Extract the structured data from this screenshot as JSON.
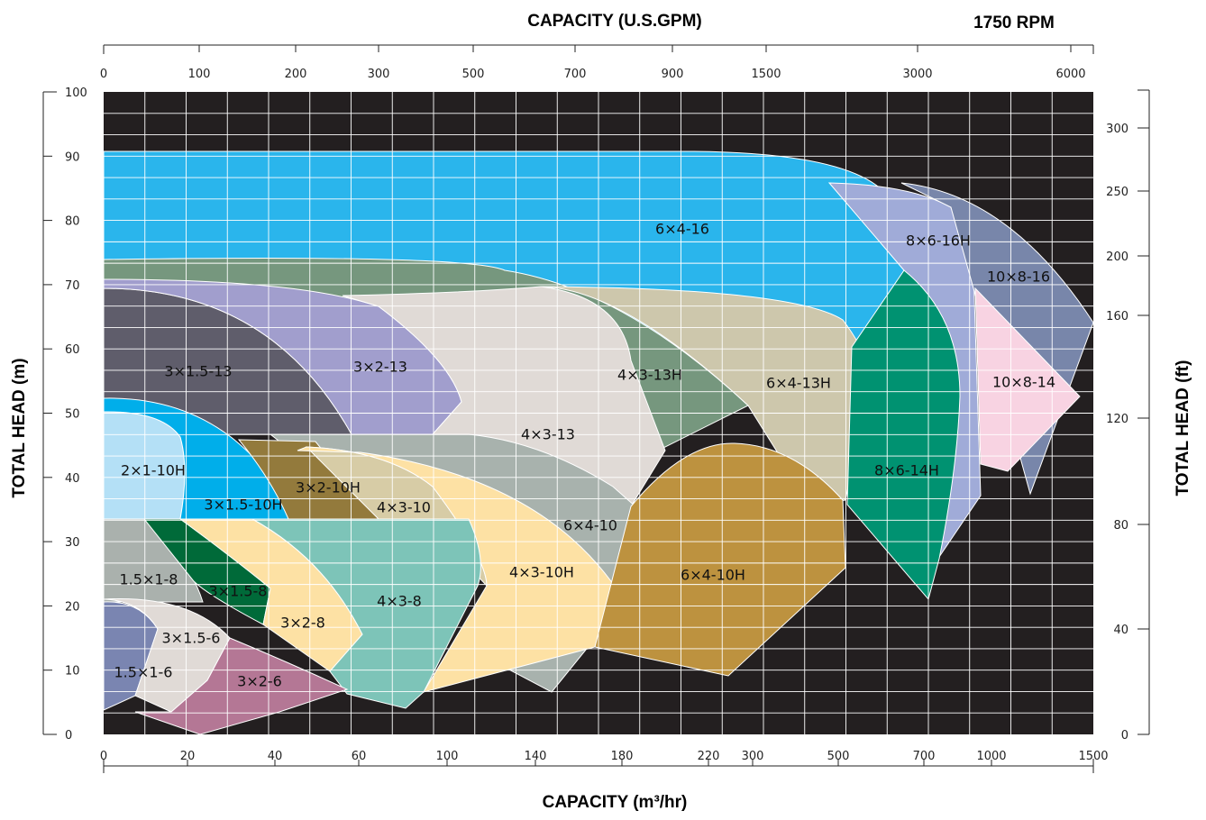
{
  "chart_data": {
    "type": "area",
    "title": "1750  RPM",
    "top_axis_label": "CAPACITY  (U.S.GPM)",
    "bottom_axis_label": "CAPACITY  (m³/hr)",
    "left_axis_label": "TOTAL  HEAD  (m)",
    "right_axis_label": "TOTAL  HEAD  (ft)",
    "top_ticks": [
      "0",
      "100",
      "200",
      "300",
      "500",
      "700",
      "900",
      "1500",
      "3000",
      "6000"
    ],
    "bottom_ticks": [
      "0",
      "20",
      "40",
      "60",
      "100",
      "140",
      "180",
      "220",
      "300",
      "500",
      "700",
      "1000",
      "1500"
    ],
    "left_ticks": [
      "0",
      "10",
      "20",
      "30",
      "40",
      "50",
      "60",
      "70",
      "80",
      "90",
      "100"
    ],
    "right_ticks": [
      "0",
      "40",
      "80",
      "120",
      "160",
      "200",
      "250",
      "300"
    ],
    "grid": true,
    "background": "#231f20",
    "regions": [
      {
        "name": "6×4-16",
        "color": "#2ab5ec"
      },
      {
        "name": "8×6-16H",
        "color": "#a0abd8"
      },
      {
        "name": "10×8-16",
        "color": "#7886aa"
      },
      {
        "name": "4×3-13H",
        "color": "#76977e"
      },
      {
        "name": "3×1.5-13",
        "color": "#5f5d6b"
      },
      {
        "name": "3×2-13",
        "color": "#a19ecd"
      },
      {
        "name": "6×4-13H",
        "color": "#cdc7ac"
      },
      {
        "name": "4×3-13",
        "color": "#e0dad6"
      },
      {
        "name": "8×6-14H",
        "color": "#009271"
      },
      {
        "name": "10×8-14",
        "color": "#f8d3e2"
      },
      {
        "name": "2×1-10H",
        "color": "#b4e0f6"
      },
      {
        "name": "3×1.5-10H",
        "color": "#00aeea"
      },
      {
        "name": "6×4-10",
        "color": "#a8b2ad"
      },
      {
        "name": "3×2-10H",
        "color": "#937a3c"
      },
      {
        "name": "4×3-10",
        "color": "#d7cca6"
      },
      {
        "name": "4×3-10H",
        "color": "#fde1a4"
      },
      {
        "name": "6×4-10H",
        "color": "#bd923f"
      },
      {
        "name": "1.5×1-8",
        "color": "#aab1ad"
      },
      {
        "name": "3×1.5-8",
        "color": "#006a39"
      },
      {
        "name": "3×2-8",
        "color": "#fde1a4"
      },
      {
        "name": "4×3-8",
        "color": "#7dc4b8"
      },
      {
        "name": "1.5×1-6",
        "color": "#7a85b1"
      },
      {
        "name": "3×1.5-6",
        "color": "#e0dad6"
      },
      {
        "name": "3×2-6",
        "color": "#b47795"
      }
    ]
  }
}
